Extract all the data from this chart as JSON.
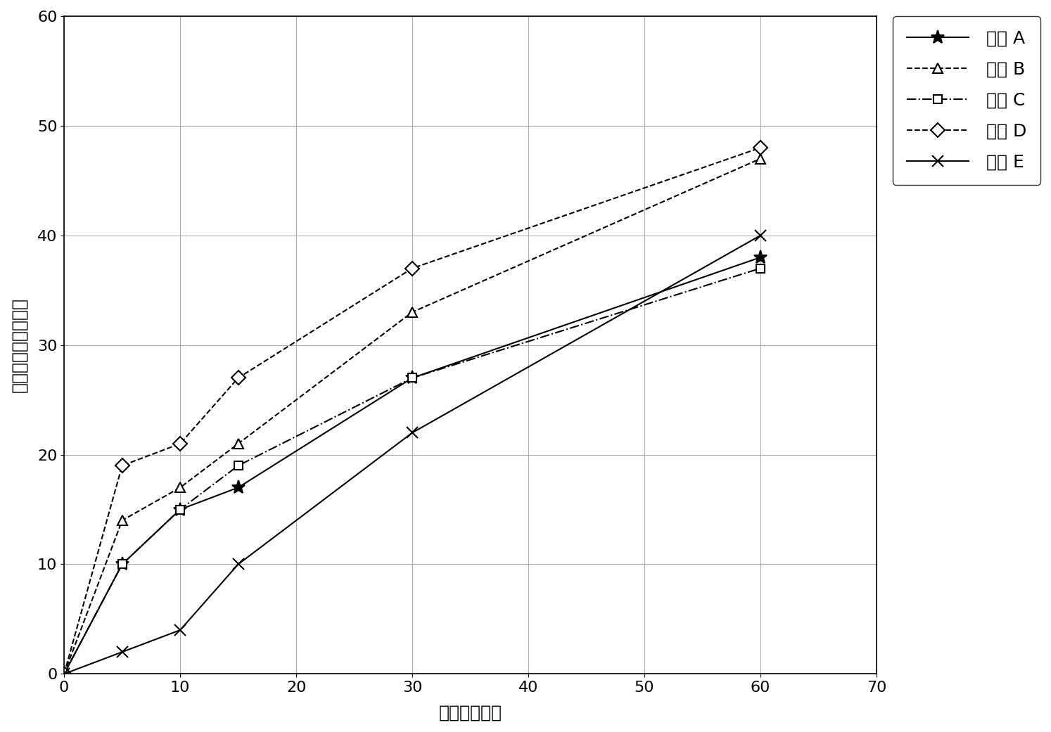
{
  "title": "",
  "xlabel": "时间（分钒）",
  "ylabel": "阿那格雷溶出百分比",
  "xlim": [
    0,
    70
  ],
  "ylim": [
    0,
    60
  ],
  "xticks": [
    0,
    10,
    20,
    30,
    40,
    50,
    60,
    70
  ],
  "yticks": [
    0,
    10,
    20,
    30,
    40,
    50,
    60
  ],
  "series": [
    {
      "label": "样品 A",
      "x": [
        0,
        5,
        10,
        15,
        30,
        60
      ],
      "y": [
        0,
        10,
        15,
        17,
        27,
        38
      ],
      "linestyle": "-",
      "marker": "*",
      "color": "#000000",
      "linewidth": 1.5,
      "markersize": 14,
      "markerfacecolor": "#000000",
      "dashes": []
    },
    {
      "label": "样品 B",
      "x": [
        0,
        5,
        10,
        15,
        30,
        60
      ],
      "y": [
        0,
        14,
        17,
        21,
        33,
        47
      ],
      "linestyle": "--",
      "marker": "^",
      "color": "#000000",
      "linewidth": 1.5,
      "markersize": 10,
      "markerfacecolor": "white",
      "dashes": [
        6,
        3
      ]
    },
    {
      "label": "样品 C",
      "x": [
        0,
        5,
        10,
        15,
        30,
        60
      ],
      "y": [
        0,
        10,
        15,
        19,
        27,
        37
      ],
      "linestyle": "-.",
      "marker": "s",
      "color": "#000000",
      "linewidth": 1.5,
      "markersize": 9,
      "markerfacecolor": "white",
      "dashes": [
        6,
        2,
        1,
        2
      ]
    },
    {
      "label": "样品 D",
      "x": [
        0,
        5,
        10,
        15,
        30,
        60
      ],
      "y": [
        0,
        19,
        21,
        27,
        37,
        48
      ],
      "linestyle": "--",
      "marker": "D",
      "color": "#000000",
      "linewidth": 1.5,
      "markersize": 10,
      "markerfacecolor": "white",
      "dashes": [
        8,
        3
      ]
    },
    {
      "label": "样品 E",
      "x": [
        0,
        5,
        10,
        15,
        30,
        60
      ],
      "y": [
        0,
        2,
        4,
        10,
        22,
        40
      ],
      "linestyle": "-",
      "marker": "x",
      "color": "#000000",
      "linewidth": 1.5,
      "markersize": 12,
      "markerfacecolor": "#000000",
      "dashes": []
    }
  ],
  "background_color": "#ffffff",
  "grid": true
}
